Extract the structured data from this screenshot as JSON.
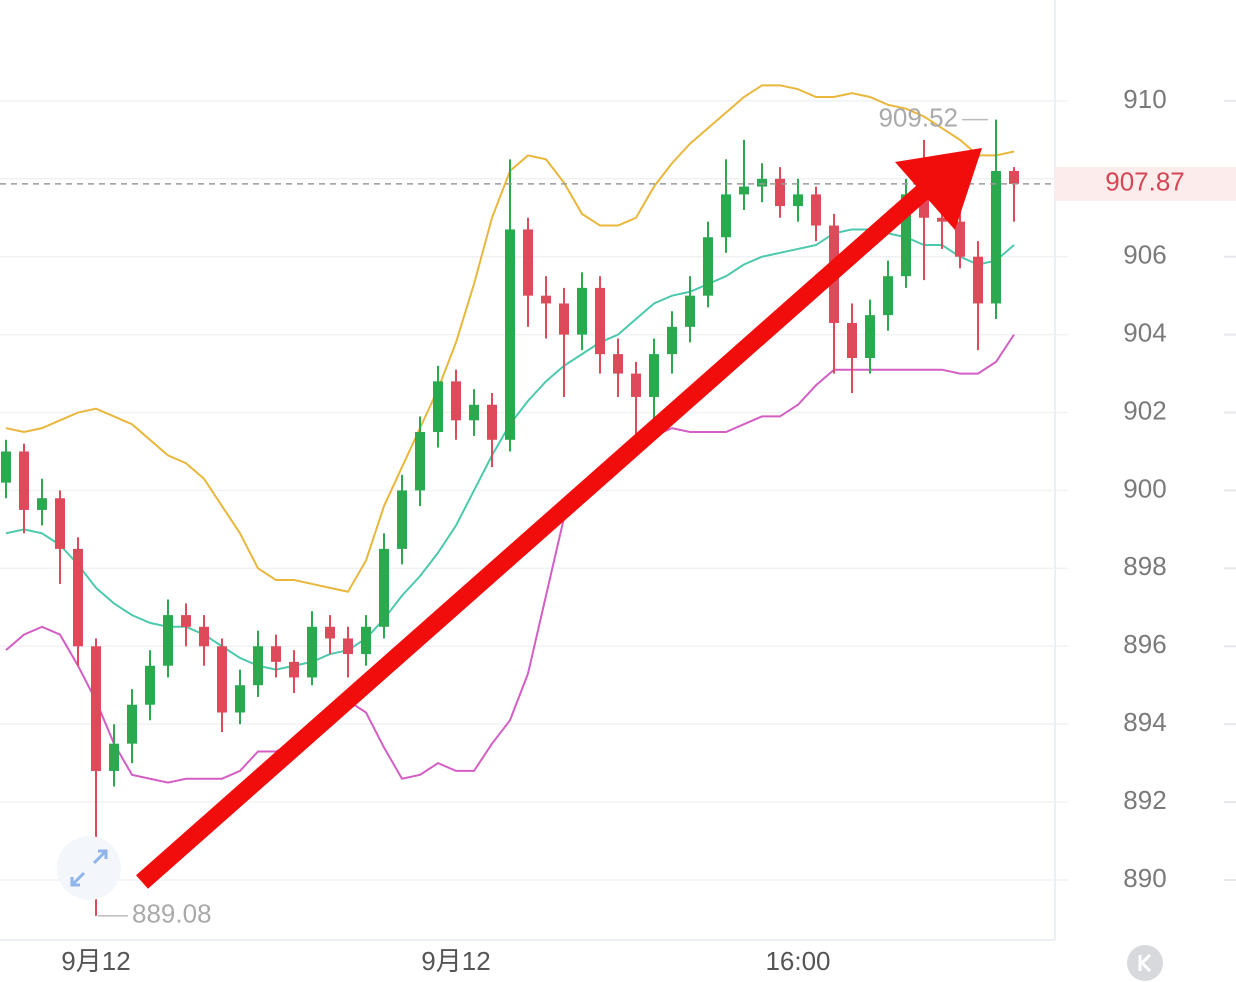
{
  "chart_data": {
    "type": "candlestick",
    "categories": [
      null,
      null,
      null,
      null,
      null,
      "9月12",
      null,
      null,
      null,
      null,
      null,
      null,
      null,
      null,
      null,
      null,
      null,
      null,
      null,
      null,
      null,
      null,
      null,
      null,
      null,
      "9月12",
      null,
      null,
      null,
      null,
      null,
      null,
      null,
      null,
      null,
      null,
      null,
      null,
      null,
      null,
      null,
      null,
      null,
      null,
      "16:00",
      null,
      null,
      null,
      null,
      null,
      null,
      null,
      null,
      null,
      null,
      null,
      null
    ],
    "open": [
      900.2,
      901.0,
      899.5,
      899.8,
      898.5,
      896.0,
      892.8,
      893.5,
      894.5,
      895.5,
      896.8,
      896.5,
      896.0,
      894.3,
      895.0,
      896.0,
      895.6,
      895.2,
      896.5,
      896.2,
      895.8,
      896.5,
      898.5,
      900.0,
      901.5,
      902.8,
      901.8,
      902.2,
      901.3,
      906.7,
      905.0,
      904.8,
      904.0,
      905.2,
      903.5,
      903.0,
      902.4,
      903.5,
      904.2,
      905.0,
      906.5,
      907.6,
      907.8,
      908.0,
      907.3,
      907.6,
      906.8,
      904.3,
      903.4,
      904.5,
      905.5,
      907.6,
      907.0,
      906.9,
      906.0,
      904.8,
      908.2
    ],
    "high": [
      901.3,
      901.2,
      900.3,
      900.0,
      898.8,
      896.2,
      894.0,
      894.9,
      895.9,
      897.2,
      897.1,
      896.8,
      896.2,
      895.4,
      896.4,
      896.3,
      895.9,
      896.9,
      896.8,
      896.5,
      896.8,
      898.9,
      900.4,
      901.9,
      903.2,
      903.1,
      902.6,
      902.5,
      908.5,
      907.0,
      905.5,
      905.2,
      905.6,
      905.5,
      903.9,
      903.3,
      903.9,
      904.6,
      905.5,
      906.9,
      908.5,
      909.0,
      908.4,
      908.3,
      908.0,
      907.8,
      907.1,
      904.8,
      904.9,
      905.9,
      908.0,
      909.0,
      907.6,
      907.3,
      906.4,
      909.52,
      908.3
    ],
    "low": [
      899.8,
      898.9,
      899.1,
      897.6,
      895.5,
      889.08,
      892.4,
      893.0,
      894.1,
      895.2,
      896.0,
      895.5,
      893.8,
      894.0,
      894.7,
      895.2,
      894.8,
      895.0,
      895.8,
      895.2,
      895.5,
      896.2,
      898.1,
      899.6,
      901.1,
      901.3,
      901.4,
      900.6,
      901.0,
      904.2,
      903.9,
      902.4,
      903.6,
      903.0,
      902.4,
      901.4,
      901.5,
      903.0,
      903.8,
      904.7,
      906.1,
      907.2,
      907.4,
      907.0,
      906.9,
      906.4,
      903.0,
      902.5,
      903.0,
      904.1,
      905.2,
      905.4,
      906.2,
      905.7,
      903.6,
      904.4,
      906.9
    ],
    "close": [
      901.0,
      899.5,
      899.8,
      898.5,
      896.0,
      892.8,
      893.5,
      894.5,
      895.5,
      896.8,
      896.5,
      896.0,
      894.3,
      895.0,
      896.0,
      895.6,
      895.2,
      896.5,
      896.2,
      895.8,
      896.5,
      898.5,
      900.0,
      901.5,
      902.8,
      901.8,
      902.2,
      901.3,
      906.7,
      905.0,
      904.8,
      904.0,
      905.2,
      903.5,
      903.0,
      902.4,
      903.5,
      904.2,
      905.0,
      906.5,
      907.6,
      907.8,
      908.0,
      907.3,
      907.6,
      906.8,
      904.3,
      903.4,
      904.5,
      905.5,
      907.6,
      907.0,
      906.9,
      906.0,
      904.8,
      908.2,
      907.87
    ],
    "up_color": "#2aa94f",
    "down_color": "#df4a5b",
    "series": [
      {
        "color": "#e8b73c",
        "values": [
          901.6,
          901.5,
          901.6,
          901.8,
          902.0,
          902.1,
          901.9,
          901.7,
          901.3,
          900.9,
          900.7,
          900.3,
          899.6,
          898.9,
          898.0,
          897.7,
          897.7,
          897.6,
          897.5,
          897.4,
          898.2,
          899.6,
          900.6,
          901.6,
          902.6,
          903.8,
          905.3,
          907.0,
          908.2,
          908.6,
          908.5,
          907.9,
          907.1,
          906.8,
          906.8,
          907.0,
          907.8,
          908.4,
          908.9,
          909.3,
          909.7,
          910.1,
          910.4,
          910.4,
          910.3,
          910.1,
          910.1,
          910.2,
          910.1,
          909.9,
          909.8,
          909.6,
          909.3,
          909.0,
          908.6,
          908.6,
          908.7
        ]
      },
      {
        "color": "#4cc9ad",
        "values": [
          898.9,
          899.0,
          898.9,
          898.6,
          898.1,
          897.5,
          897.1,
          896.8,
          896.6,
          896.5,
          896.5,
          896.3,
          896.0,
          895.7,
          895.5,
          895.4,
          895.5,
          895.6,
          895.8,
          895.9,
          896.2,
          896.7,
          897.3,
          897.8,
          898.4,
          899.1,
          900.0,
          900.9,
          901.7,
          902.3,
          902.8,
          903.2,
          903.5,
          903.8,
          904.0,
          904.4,
          904.8,
          905.0,
          905.1,
          905.3,
          905.5,
          905.8,
          906.0,
          906.1,
          906.2,
          906.3,
          906.6,
          906.7,
          906.7,
          906.6,
          906.5,
          906.3,
          906.3,
          906.0,
          905.8,
          905.9,
          906.3
        ]
      },
      {
        "color": "#d35ec4",
        "values": [
          895.9,
          896.3,
          896.5,
          896.3,
          895.5,
          894.6,
          893.5,
          892.7,
          892.6,
          892.5,
          892.6,
          892.6,
          892.6,
          892.8,
          893.3,
          893.3,
          893.5,
          893.9,
          894.3,
          894.6,
          894.3,
          893.4,
          892.6,
          892.7,
          893.0,
          892.8,
          892.8,
          893.5,
          894.1,
          895.3,
          897.3,
          899.3,
          899.9,
          900.3,
          900.7,
          901.0,
          901.4,
          901.6,
          901.5,
          901.5,
          901.5,
          901.7,
          901.9,
          901.9,
          902.2,
          902.7,
          903.1,
          903.1,
          903.1,
          903.1,
          903.1,
          903.1,
          903.1,
          903.0,
          903.0,
          903.3,
          904.0
        ]
      }
    ],
    "ylim": [
      888.46,
      912.59
    ],
    "yticks": [
      890,
      892,
      894,
      896,
      898,
      900,
      902,
      904,
      906,
      908,
      910
    ],
    "grid": true
  }
}
